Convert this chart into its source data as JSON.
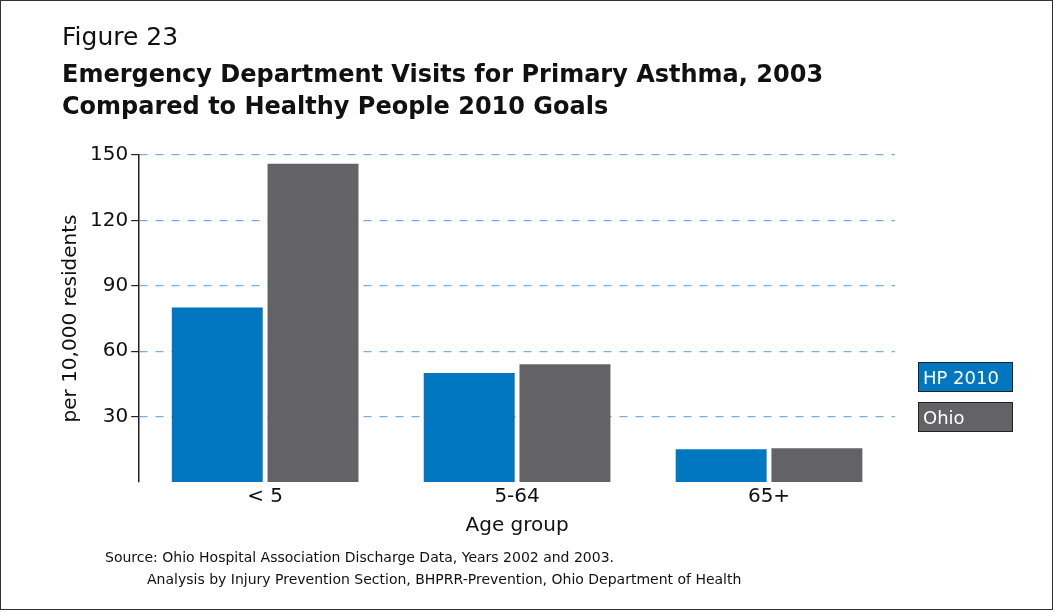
{
  "chart_data": {
    "type": "bar",
    "subtitle": "Figure 23",
    "title": "Emergency Department Visits for Primary Asthma, 2003 Compared to Healthy People 2010 Goals",
    "xlabel": "Age group",
    "ylabel": "per 10,000 residents",
    "categories": [
      "< 5",
      "5-64",
      "65+"
    ],
    "series": [
      {
        "name": "HP 2010",
        "color": "#0077c0",
        "values": [
          80,
          50,
          15
        ]
      },
      {
        "name": "Ohio",
        "color": "#636365",
        "values": [
          146,
          54,
          15.5
        ]
      }
    ],
    "ylim": [
      0,
      150
    ],
    "yticks": [
      30,
      60,
      90,
      120,
      150
    ],
    "grid": "y",
    "line_style": "dashed",
    "legend": "right",
    "annotations": [
      "Source:  Ohio Hospital Association Discharge Data, Years 2002 and 2003.",
      "Analysis by Injury Prevention Section, BHPRR-Prevention, Ohio Department of Health"
    ]
  }
}
